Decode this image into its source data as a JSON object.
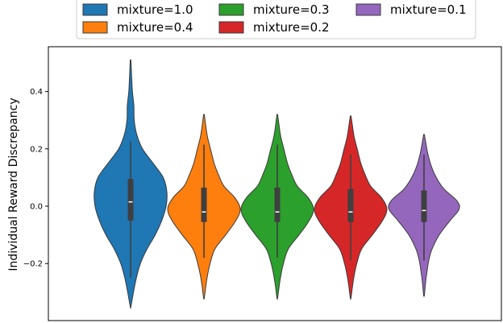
{
  "chart_data": {
    "type": "violin",
    "title": "",
    "xlabel": "",
    "ylabel": "Individual Reward Discrepancy",
    "ylim": [
      -0.4,
      0.52
    ],
    "yticks": [
      -0.2,
      0.0,
      0.2,
      0.4
    ],
    "ytick_labels": [
      "−0.2",
      "0.0",
      "0.2",
      "0.4"
    ],
    "grid": false,
    "legend_position": "top-center",
    "series": [
      {
        "name": "mixture=1.0",
        "color": "#1f77b4",
        "min": -0.35,
        "max": 0.51,
        "q1": -0.05,
        "median": 0.015,
        "q3": 0.095,
        "whisker_low": -0.25,
        "whisker_high": 0.225,
        "density": [
          [
            -0.35,
            0.01
          ],
          [
            -0.3,
            0.08
          ],
          [
            -0.25,
            0.16
          ],
          [
            -0.2,
            0.27
          ],
          [
            -0.15,
            0.45
          ],
          [
            -0.1,
            0.68
          ],
          [
            -0.05,
            0.86
          ],
          [
            0.0,
            0.98
          ],
          [
            0.05,
            1.0
          ],
          [
            0.1,
            0.9
          ],
          [
            0.15,
            0.62
          ],
          [
            0.2,
            0.33
          ],
          [
            0.25,
            0.17
          ],
          [
            0.3,
            0.1
          ],
          [
            0.35,
            0.09
          ],
          [
            0.4,
            0.05
          ],
          [
            0.45,
            0.03
          ],
          [
            0.51,
            0.01
          ]
        ]
      },
      {
        "name": "mixture=0.4",
        "color": "#ff7f0e",
        "min": -0.32,
        "max": 0.32,
        "q1": -0.055,
        "median": -0.02,
        "q3": 0.065,
        "whisker_low": -0.18,
        "whisker_high": 0.215,
        "density": [
          [
            -0.32,
            0.01
          ],
          [
            -0.28,
            0.05
          ],
          [
            -0.24,
            0.1
          ],
          [
            -0.2,
            0.17
          ],
          [
            -0.15,
            0.3
          ],
          [
            -0.1,
            0.6
          ],
          [
            -0.05,
            0.88
          ],
          [
            -0.01,
            1.0
          ],
          [
            0.03,
            0.85
          ],
          [
            0.07,
            0.55
          ],
          [
            0.11,
            0.4
          ],
          [
            0.15,
            0.28
          ],
          [
            0.2,
            0.18
          ],
          [
            0.24,
            0.1
          ],
          [
            0.28,
            0.05
          ],
          [
            0.32,
            0.01
          ]
        ]
      },
      {
        "name": "mixture=0.3",
        "color": "#2ca02c",
        "min": -0.32,
        "max": 0.32,
        "q1": -0.055,
        "median": -0.02,
        "q3": 0.065,
        "whisker_low": -0.18,
        "whisker_high": 0.215,
        "density": [
          [
            -0.32,
            0.01
          ],
          [
            -0.28,
            0.05
          ],
          [
            -0.24,
            0.1
          ],
          [
            -0.2,
            0.17
          ],
          [
            -0.15,
            0.3
          ],
          [
            -0.1,
            0.6
          ],
          [
            -0.05,
            0.88
          ],
          [
            -0.01,
            1.0
          ],
          [
            0.03,
            0.85
          ],
          [
            0.07,
            0.55
          ],
          [
            0.11,
            0.4
          ],
          [
            0.15,
            0.28
          ],
          [
            0.2,
            0.18
          ],
          [
            0.24,
            0.1
          ],
          [
            0.28,
            0.05
          ],
          [
            0.32,
            0.01
          ]
        ]
      },
      {
        "name": "mixture=0.2",
        "color": "#d62728",
        "min": -0.32,
        "max": 0.315,
        "q1": -0.055,
        "median": -0.02,
        "q3": 0.06,
        "whisker_low": -0.19,
        "whisker_high": 0.18,
        "density": [
          [
            -0.32,
            0.01
          ],
          [
            -0.28,
            0.05
          ],
          [
            -0.24,
            0.1
          ],
          [
            -0.2,
            0.17
          ],
          [
            -0.15,
            0.3
          ],
          [
            -0.1,
            0.6
          ],
          [
            -0.05,
            0.88
          ],
          [
            -0.01,
            1.0
          ],
          [
            0.03,
            0.85
          ],
          [
            0.07,
            0.55
          ],
          [
            0.11,
            0.4
          ],
          [
            0.15,
            0.28
          ],
          [
            0.2,
            0.18
          ],
          [
            0.24,
            0.1
          ],
          [
            0.28,
            0.05
          ],
          [
            0.315,
            0.01
          ]
        ]
      },
      {
        "name": "mixture=0.1",
        "color": "#9467bd",
        "min": -0.31,
        "max": 0.25,
        "q1": -0.055,
        "median": -0.015,
        "q3": 0.055,
        "whisker_low": -0.19,
        "whisker_high": 0.18,
        "density": [
          [
            -0.31,
            0.01
          ],
          [
            -0.27,
            0.04
          ],
          [
            -0.23,
            0.08
          ],
          [
            -0.19,
            0.13
          ],
          [
            -0.15,
            0.22
          ],
          [
            -0.1,
            0.42
          ],
          [
            -0.05,
            0.72
          ],
          [
            -0.01,
            0.97
          ],
          [
            0.02,
            0.9
          ],
          [
            0.06,
            0.55
          ],
          [
            0.1,
            0.34
          ],
          [
            0.14,
            0.2
          ],
          [
            0.18,
            0.11
          ],
          [
            0.22,
            0.05
          ],
          [
            0.25,
            0.01
          ]
        ]
      }
    ],
    "legend_order": [
      "mixture=1.0",
      "mixture=0.3",
      "mixture=0.1",
      "mixture=0.4",
      "mixture=0.2"
    ]
  }
}
